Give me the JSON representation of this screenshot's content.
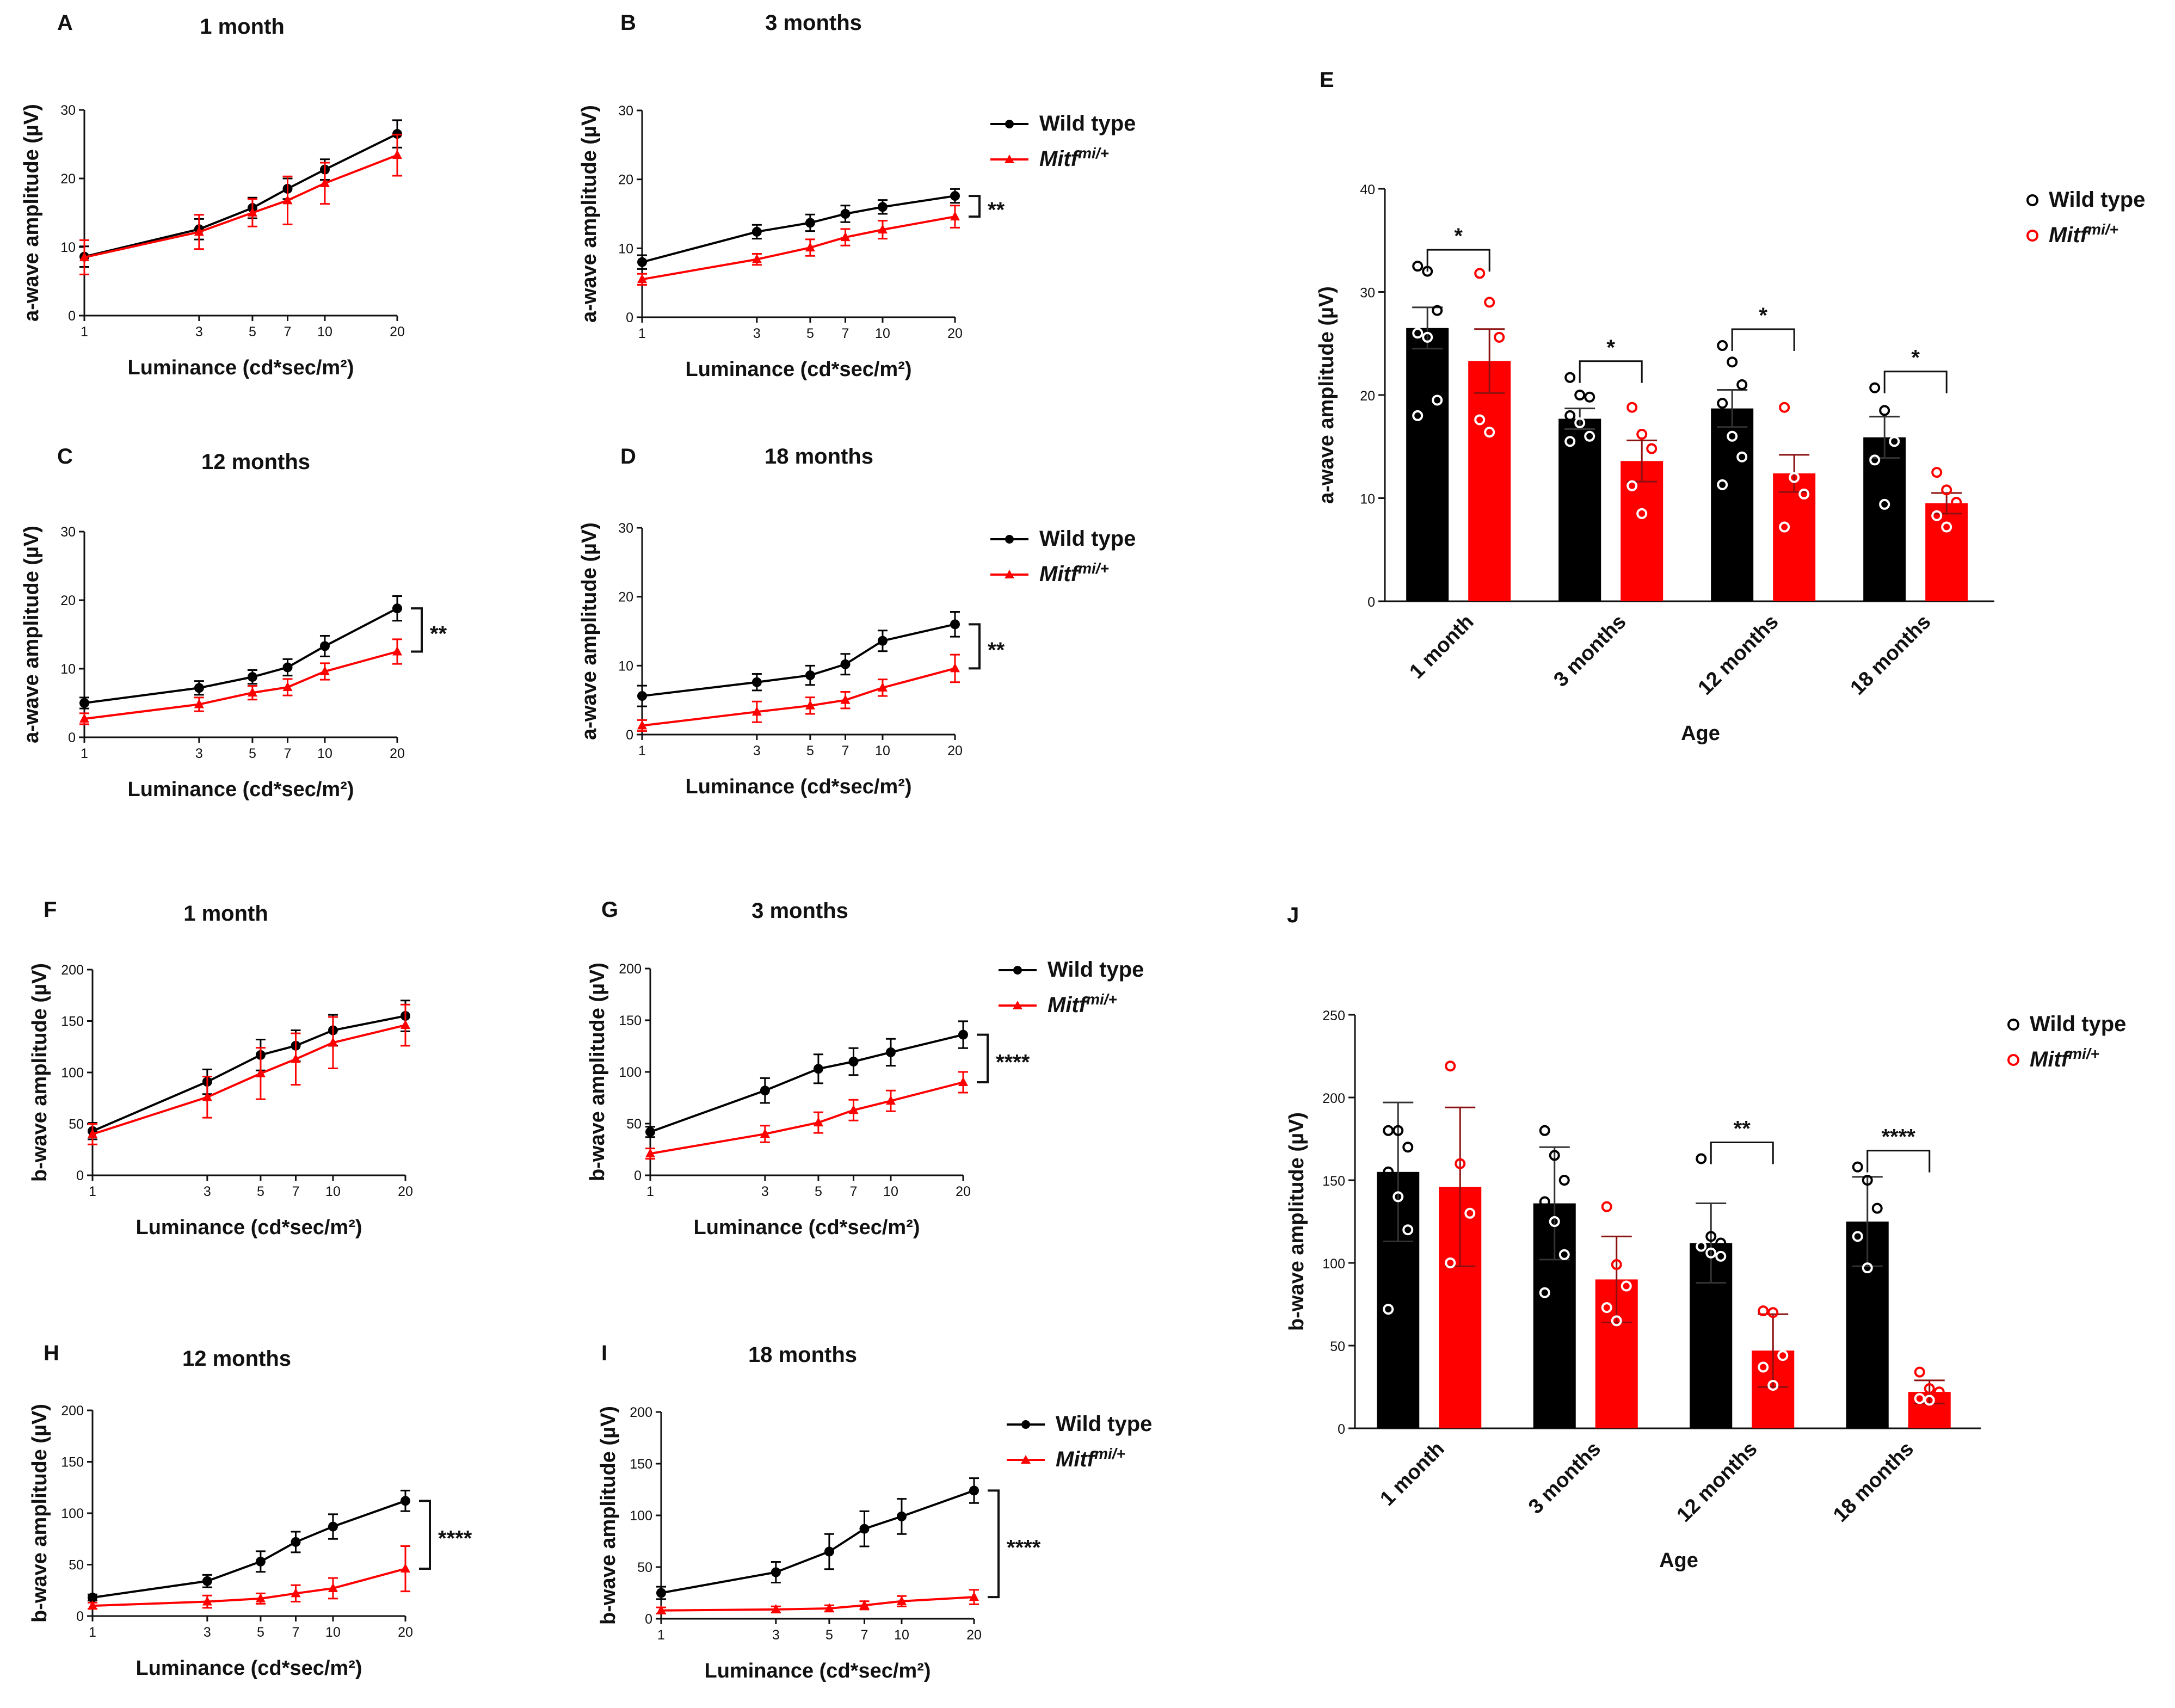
{
  "colors": {
    "wild_type": "#000000",
    "mitf": "#ff0000",
    "axis": "#111111"
  },
  "chart_data": [
    {
      "panel": "A",
      "type": "line",
      "title": "1 month",
      "xlabel": "Luminance (cd*sec/m²)",
      "ylabel": "a-wave amplitude (µV)",
      "x_ticks": [
        1,
        3,
        5,
        7,
        10,
        20
      ],
      "y_ticks": [
        0,
        10,
        20,
        30
      ],
      "ylim": [
        0,
        30
      ],
      "x": [
        1,
        3,
        5,
        7,
        10,
        20
      ],
      "series": [
        {
          "name": "Wild type",
          "values": [
            8.6,
            12.6,
            15.7,
            18.5,
            21.3,
            26.5
          ],
          "errors": [
            1.5,
            1.5,
            1.5,
            1.5,
            1.5,
            2.0
          ]
        },
        {
          "name": "Mitf mi/+",
          "values": [
            8.5,
            12.2,
            15.0,
            16.8,
            19.3,
            23.4
          ],
          "errors": [
            2.5,
            2.5,
            2.0,
            3.5,
            3.0,
            3.0
          ]
        }
      ],
      "significance": "",
      "legend": false
    },
    {
      "panel": "B",
      "type": "line",
      "title": "3 months",
      "xlabel": "Luminance (cd*sec/m²)",
      "ylabel": "a-wave amplitude (µV)",
      "x_ticks": [
        1,
        3,
        5,
        7,
        10,
        20
      ],
      "y_ticks": [
        0,
        10,
        20,
        30
      ],
      "ylim": [
        0,
        30
      ],
      "x": [
        1,
        3,
        5,
        7,
        10,
        20
      ],
      "series": [
        {
          "name": "Wild type",
          "values": [
            8.0,
            12.4,
            13.7,
            15.0,
            16.0,
            17.6
          ],
          "errors": [
            1.0,
            1.0,
            1.2,
            1.2,
            1.0,
            1.0
          ]
        },
        {
          "name": "Mitf mi/+",
          "values": [
            5.5,
            8.4,
            10.1,
            11.6,
            12.7,
            14.6
          ],
          "errors": [
            0.8,
            0.8,
            1.2,
            1.2,
            1.3,
            1.6
          ]
        }
      ],
      "significance": "**",
      "legend": true
    },
    {
      "panel": "C",
      "type": "line",
      "title": "12 months",
      "xlabel": "Luminance (cd*sec/m²)",
      "ylabel": "a-wave amplitude (µV)",
      "x_ticks": [
        1,
        3,
        5,
        7,
        10,
        20
      ],
      "y_ticks": [
        0,
        10,
        20,
        30
      ],
      "ylim": [
        0,
        30
      ],
      "x": [
        1,
        3,
        5,
        7,
        10,
        20
      ],
      "series": [
        {
          "name": "Wild type",
          "values": [
            5.0,
            7.2,
            8.8,
            10.2,
            13.3,
            18.8
          ],
          "errors": [
            0.8,
            1.0,
            1.0,
            1.2,
            1.5,
            1.8
          ]
        },
        {
          "name": "Mitf mi/+",
          "values": [
            2.7,
            4.8,
            6.5,
            7.3,
            9.6,
            12.5
          ],
          "errors": [
            0.8,
            1.0,
            1.0,
            1.2,
            1.2,
            1.8
          ]
        }
      ],
      "significance": "**",
      "legend": false
    },
    {
      "panel": "D",
      "type": "line",
      "title": "18 months",
      "xlabel": "Luminance (cd*sec/m²)",
      "ylabel": "a-wave amplitude (µV)",
      "x_ticks": [
        1,
        3,
        5,
        7,
        10,
        20
      ],
      "y_ticks": [
        0,
        10,
        20,
        30
      ],
      "ylim": [
        0,
        30
      ],
      "x": [
        1,
        3,
        5,
        7,
        10,
        20
      ],
      "series": [
        {
          "name": "Wild type",
          "values": [
            5.6,
            7.6,
            8.6,
            10.2,
            13.6,
            16.0
          ],
          "errors": [
            1.5,
            1.2,
            1.4,
            1.5,
            1.5,
            1.8
          ]
        },
        {
          "name": "Mitf mi/+",
          "values": [
            1.3,
            3.3,
            4.2,
            5.0,
            6.8,
            9.6
          ],
          "errors": [
            0.8,
            1.5,
            1.2,
            1.2,
            1.2,
            2.0
          ]
        }
      ],
      "significance": "**",
      "legend": true
    },
    {
      "panel": "E",
      "type": "bar",
      "title": "",
      "xlabel": "Age",
      "ylabel": "a-wave amplitude (µV)",
      "categories": [
        "1 month",
        "3 months",
        "12 months",
        "18 months"
      ],
      "y_ticks": [
        0,
        10,
        20,
        30,
        40
      ],
      "ylim": [
        0,
        40
      ],
      "series": [
        {
          "name": "Wild type",
          "values": [
            26.5,
            17.7,
            18.7,
            15.9
          ],
          "errors": [
            2.0,
            1.0,
            1.8,
            2.0
          ],
          "points": [
            [
              32.5,
              32.0,
              28.2,
              26.0,
              25.6,
              19.5,
              18.0
            ],
            [
              21.7,
              20.0,
              19.8,
              18.0,
              17.3,
              16.0,
              15.5
            ],
            [
              24.8,
              23.2,
              21.0,
              19.2,
              16.0,
              14.0,
              11.3
            ],
            [
              20.7,
              18.5,
              15.5,
              13.7,
              9.4
            ]
          ]
        },
        {
          "name": "Mitf mi/+",
          "values": [
            23.3,
            13.6,
            12.4,
            9.5
          ],
          "errors": [
            3.1,
            2.0,
            1.8,
            1.0
          ],
          "points": [
            [
              31.8,
              29.0,
              25.6,
              17.6,
              16.4
            ],
            [
              18.8,
              16.2,
              14.8,
              11.2,
              8.5
            ],
            [
              18.8,
              12.0,
              10.4,
              7.2
            ],
            [
              12.5,
              10.8,
              9.6,
              8.3,
              7.2
            ]
          ]
        }
      ],
      "significance": [
        "*",
        "*",
        "*",
        "*"
      ],
      "legend": true
    },
    {
      "panel": "F",
      "type": "line",
      "title": "1 month",
      "xlabel": "Luminance (cd*sec/m²)",
      "ylabel": "b-wave amplitude (µV)",
      "x_ticks": [
        1,
        3,
        5,
        7,
        10,
        20
      ],
      "y_ticks": [
        0,
        50,
        100,
        150,
        200
      ],
      "ylim": [
        0,
        200
      ],
      "x": [
        1,
        3,
        5,
        7,
        10,
        20
      ],
      "series": [
        {
          "name": "Wild type",
          "values": [
            43,
            91,
            117,
            126,
            141,
            155
          ],
          "errors": [
            8,
            12,
            15,
            15,
            15,
            15
          ]
        },
        {
          "name": "Mitf mi/+",
          "values": [
            40,
            76,
            99,
            113,
            129,
            146
          ],
          "errors": [
            10,
            20,
            25,
            25,
            25,
            20
          ]
        }
      ],
      "significance": "",
      "legend": false
    },
    {
      "panel": "G",
      "type": "line",
      "title": "3 months",
      "xlabel": "Luminance (cd*sec/m²)",
      "ylabel": "b-wave amplitude (µV)",
      "x_ticks": [
        1,
        3,
        5,
        7,
        10,
        20
      ],
      "y_ticks": [
        0,
        50,
        100,
        150,
        200
      ],
      "ylim": [
        0,
        200
      ],
      "x": [
        1,
        3,
        5,
        7,
        10,
        20
      ],
      "series": [
        {
          "name": "Wild type",
          "values": [
            42,
            82,
            103,
            110,
            119,
            136
          ],
          "errors": [
            5,
            12,
            14,
            13,
            13,
            13
          ]
        },
        {
          "name": "Mitf mi/+",
          "values": [
            21,
            40,
            51,
            63,
            72,
            90
          ],
          "errors": [
            5,
            8,
            10,
            10,
            10,
            10
          ]
        }
      ],
      "significance": "****",
      "legend": true
    },
    {
      "panel": "H",
      "type": "line",
      "title": "12 months",
      "xlabel": "Luminance (cd*sec/m²)",
      "ylabel": "b-wave amplitude (µV)",
      "x_ticks": [
        1,
        3,
        5,
        7,
        10,
        20
      ],
      "y_ticks": [
        0,
        50,
        100,
        150,
        200
      ],
      "ylim": [
        0,
        200
      ],
      "x": [
        1,
        3,
        5,
        7,
        10,
        20
      ],
      "series": [
        {
          "name": "Wild type",
          "values": [
            18,
            34,
            53,
            72,
            87,
            112
          ],
          "errors": [
            3,
            6,
            10,
            10,
            12,
            10
          ]
        },
        {
          "name": "Mitf mi/+",
          "values": [
            10,
            14,
            17,
            22,
            27,
            46
          ],
          "errors": [
            3,
            6,
            5,
            8,
            10,
            22
          ]
        }
      ],
      "significance": "****",
      "legend": false
    },
    {
      "panel": "I",
      "type": "line",
      "title": "18 months",
      "xlabel": "Luminance (cd*sec/m²)",
      "ylabel": "b-wave amplitude (µV)",
      "x_ticks": [
        1,
        3,
        5,
        7,
        10,
        20
      ],
      "y_ticks": [
        0,
        50,
        100,
        150,
        200
      ],
      "ylim": [
        0,
        200
      ],
      "x": [
        1,
        3,
        5,
        7,
        10,
        20
      ],
      "series": [
        {
          "name": "Wild type",
          "values": [
            25,
            45,
            65,
            87,
            99,
            124
          ],
          "errors": [
            6,
            10,
            17,
            17,
            17,
            12
          ]
        },
        {
          "name": "Mitf mi/+",
          "values": [
            8,
            9,
            10,
            13,
            17,
            21
          ],
          "errors": [
            3,
            3,
            3,
            4,
            5,
            7
          ]
        }
      ],
      "significance": "****",
      "legend": true
    },
    {
      "panel": "J",
      "type": "bar",
      "title": "",
      "xlabel": "Age",
      "ylabel": "b-wave amplitude (µV)",
      "categories": [
        "1 month",
        "3 months",
        "12 months",
        "18 months"
      ],
      "y_ticks": [
        0,
        50,
        100,
        150,
        200,
        250
      ],
      "ylim": [
        0,
        250
      ],
      "series": [
        {
          "name": "Wild type",
          "values": [
            155,
            136,
            112,
            125
          ],
          "errors": [
            42,
            34,
            24,
            27
          ],
          "points": [
            [
              180,
              180,
              170,
              155,
              140,
              120,
              72
            ],
            [
              180,
              165,
              150,
              137,
              125,
              105,
              82
            ],
            [
              163,
              116,
              112,
              110,
              106,
              104
            ],
            [
              158,
              150,
              133,
              116,
              97
            ]
          ]
        },
        {
          "name": "Mitf mi/+",
          "values": [
            146,
            90,
            47,
            22
          ],
          "errors": [
            48,
            26,
            22,
            7
          ],
          "points": [
            [
              219,
              160,
              130,
              100
            ],
            [
              134,
              99,
              86,
              73,
              65
            ],
            [
              71,
              70,
              44,
              37,
              26
            ],
            [
              34,
              24,
              22,
              18,
              17
            ]
          ]
        }
      ],
      "significance": [
        "",
        "",
        "**",
        "****"
      ],
      "legend": true
    }
  ],
  "legend": {
    "wild_type": "Wild type",
    "mitf_base": "Mitf",
    "mitf_sup": "mi/+"
  }
}
